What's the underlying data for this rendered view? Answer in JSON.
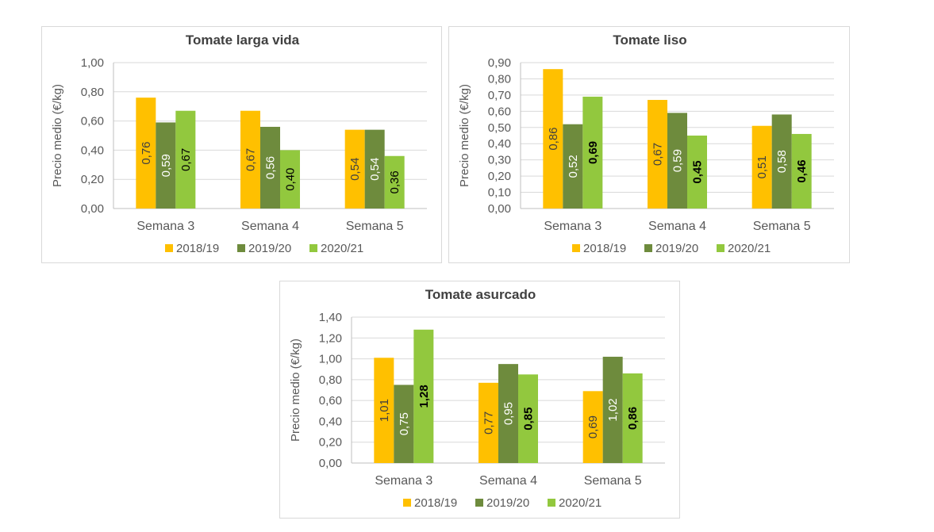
{
  "colors": {
    "s2018": "#FFC000",
    "s2019": "#6E8B3D",
    "s2020": "#92C83E",
    "grid": "#d9d9d9",
    "text": "#595959"
  },
  "chart_data": [
    {
      "type": "bar",
      "title": "Tomate larga vida",
      "ylabel": "Precio medio (€/kg)",
      "xlabel": "",
      "categories": [
        "Semana 3",
        "Semana 4",
        "Semana 5"
      ],
      "ylim": [
        0,
        1.0
      ],
      "ystep": 0.2,
      "yticks": [
        "0,00",
        "0,20",
        "0,40",
        "0,60",
        "0,80",
        "1,00"
      ],
      "grid": true,
      "legend": "bottom",
      "series": [
        {
          "name": "2018/19",
          "values": [
            0.76,
            0.67,
            0.54
          ],
          "labels": [
            "0,76",
            "0,67",
            "0,54"
          ]
        },
        {
          "name": "2019/20",
          "values": [
            0.59,
            0.56,
            0.54
          ],
          "labels": [
            "0,59",
            "0,56",
            "0,54"
          ]
        },
        {
          "name": "2020/21",
          "values": [
            0.67,
            0.4,
            0.36
          ],
          "labels": [
            "0,67",
            "0,40",
            "0,36"
          ]
        }
      ]
    },
    {
      "type": "bar",
      "title": "Tomate liso",
      "ylabel": "Precio medio (€/kg)",
      "xlabel": "",
      "categories": [
        "Semana 3",
        "Semana 4",
        "Semana 5"
      ],
      "ylim": [
        0,
        0.9
      ],
      "ystep": 0.1,
      "yticks": [
        "0,00",
        "0,10",
        "0,20",
        "0,30",
        "0,40",
        "0,50",
        "0,60",
        "0,70",
        "0,80",
        "0,90"
      ],
      "grid": true,
      "legend": "bottom",
      "series": [
        {
          "name": "2018/19",
          "values": [
            0.86,
            0.67,
            0.51
          ],
          "labels": [
            "0,86",
            "0,67",
            "0,51"
          ]
        },
        {
          "name": "2019/20",
          "values": [
            0.52,
            0.59,
            0.58
          ],
          "labels": [
            "0,52",
            "0,59",
            "0,58"
          ]
        },
        {
          "name": "2020/21",
          "values": [
            0.69,
            0.45,
            0.46
          ],
          "labels": [
            "0,69",
            "0,45",
            "0,46"
          ]
        }
      ]
    },
    {
      "type": "bar",
      "title": "Tomate asurcado",
      "ylabel": "Precio medio (€/kg)",
      "xlabel": "",
      "categories": [
        "Semana 3",
        "Semana 4",
        "Semana 5"
      ],
      "ylim": [
        0,
        1.4
      ],
      "ystep": 0.2,
      "yticks": [
        "0,00",
        "0,20",
        "0,40",
        "0,60",
        "0,80",
        "1,00",
        "1,20",
        "1,40"
      ],
      "grid": true,
      "legend": "bottom",
      "series": [
        {
          "name": "2018/19",
          "values": [
            1.01,
            0.77,
            0.69
          ],
          "labels": [
            "1,01",
            "0,77",
            "0,69"
          ]
        },
        {
          "name": "2019/20",
          "values": [
            0.75,
            0.95,
            1.02
          ],
          "labels": [
            "0,75",
            "0,95",
            "1,02"
          ]
        },
        {
          "name": "2020/21",
          "values": [
            1.28,
            0.85,
            0.86
          ],
          "labels": [
            "1,28",
            "0,85",
            "0,86"
          ]
        }
      ]
    }
  ]
}
